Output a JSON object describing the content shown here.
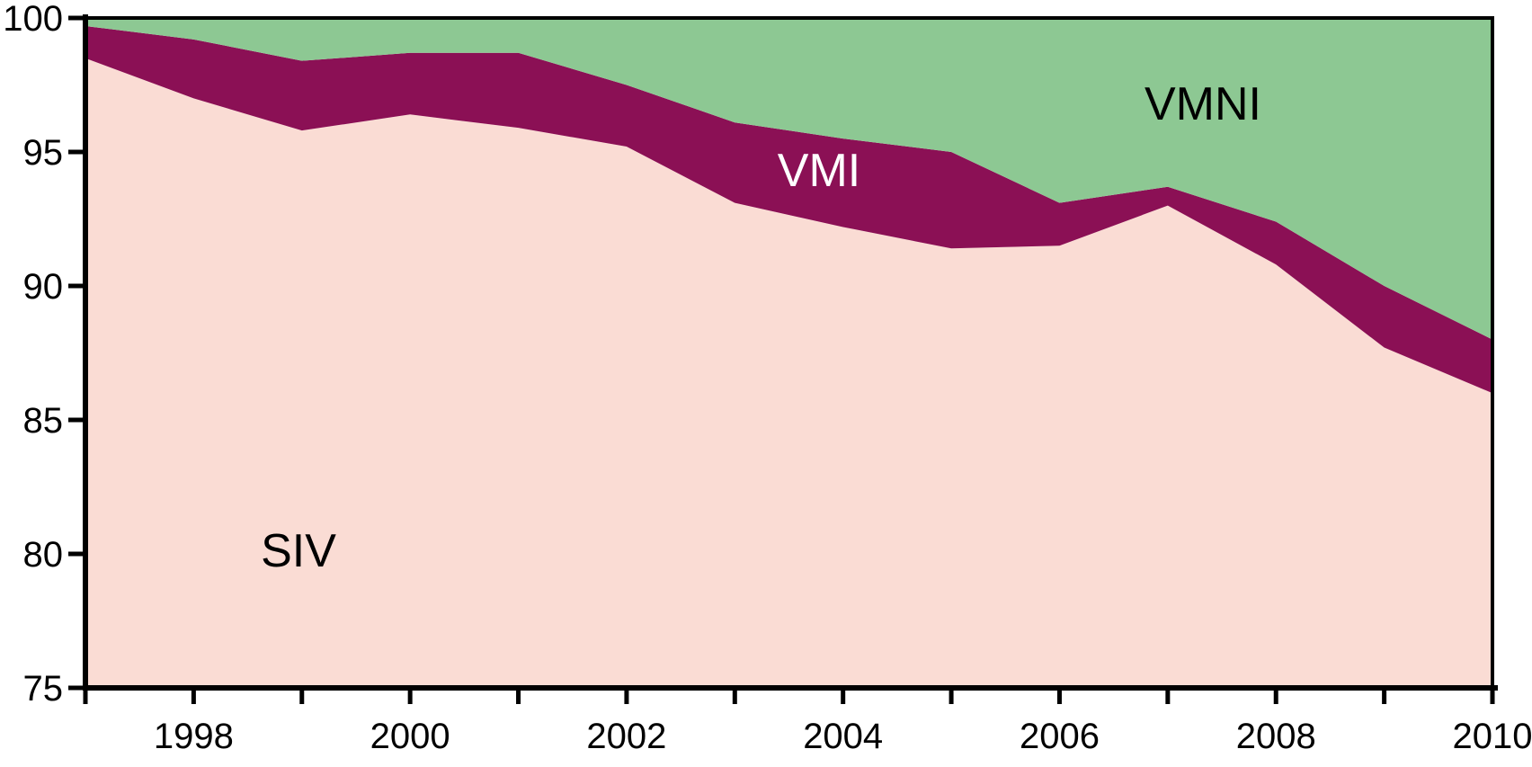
{
  "chart_data": {
    "type": "area",
    "stacked": true,
    "title": "",
    "xlabel": "",
    "ylabel": "",
    "xlim": [
      1997,
      2010
    ],
    "ylim": [
      75,
      100
    ],
    "grid": false,
    "legend_position": "inline-area-labels",
    "x": [
      1997,
      1998,
      1999,
      2000,
      2001,
      2002,
      2003,
      2004,
      2005,
      2006,
      2007,
      2008,
      2009,
      2010
    ],
    "series": [
      {
        "name": "SIV",
        "values": [
          98.5,
          97.0,
          95.8,
          96.4,
          95.9,
          95.2,
          93.1,
          92.2,
          91.4,
          91.5,
          93.0,
          90.8,
          87.7,
          86.0
        ],
        "color": "#fadcd4",
        "label_color": "#000000"
      },
      {
        "name": "VMI",
        "values": [
          1.2,
          2.2,
          2.6,
          2.3,
          2.8,
          2.3,
          3.0,
          3.3,
          3.6,
          1.6,
          0.7,
          1.6,
          2.3,
          2.0
        ],
        "color": "#8b1055",
        "label_color": "#ffffff"
      },
      {
        "name": "VMNI",
        "values": [
          0.3,
          0.8,
          1.6,
          1.3,
          1.3,
          2.5,
          3.9,
          4.5,
          5.0,
          6.9,
          6.3,
          7.6,
          10.0,
          12.0
        ],
        "color": "#8dc893",
        "label_color": "#000000"
      }
    ],
    "boundaries": {
      "siv_top": [
        98.5,
        97.0,
        95.8,
        96.4,
        95.9,
        95.2,
        93.1,
        92.2,
        91.4,
        91.5,
        93.0,
        90.8,
        87.7,
        86.0
      ],
      "vmi_top": [
        99.7,
        99.2,
        98.4,
        98.7,
        98.7,
        97.5,
        96.1,
        95.5,
        95.0,
        93.1,
        93.7,
        92.4,
        90.0,
        88.0
      ],
      "vmni_top": 100
    },
    "y_ticks": [
      75,
      80,
      85,
      90,
      95,
      100
    ],
    "y_tick_labels": [
      "75",
      "80",
      "85",
      "90",
      "95",
      "100"
    ],
    "x_label_years": [
      1998,
      2000,
      2002,
      2004,
      2006,
      2008,
      2010
    ],
    "x_tick_labels": [
      "1998",
      "2000",
      "2002",
      "2004",
      "2006",
      "2008",
      "2010"
    ],
    "axis_color": "#000000"
  }
}
